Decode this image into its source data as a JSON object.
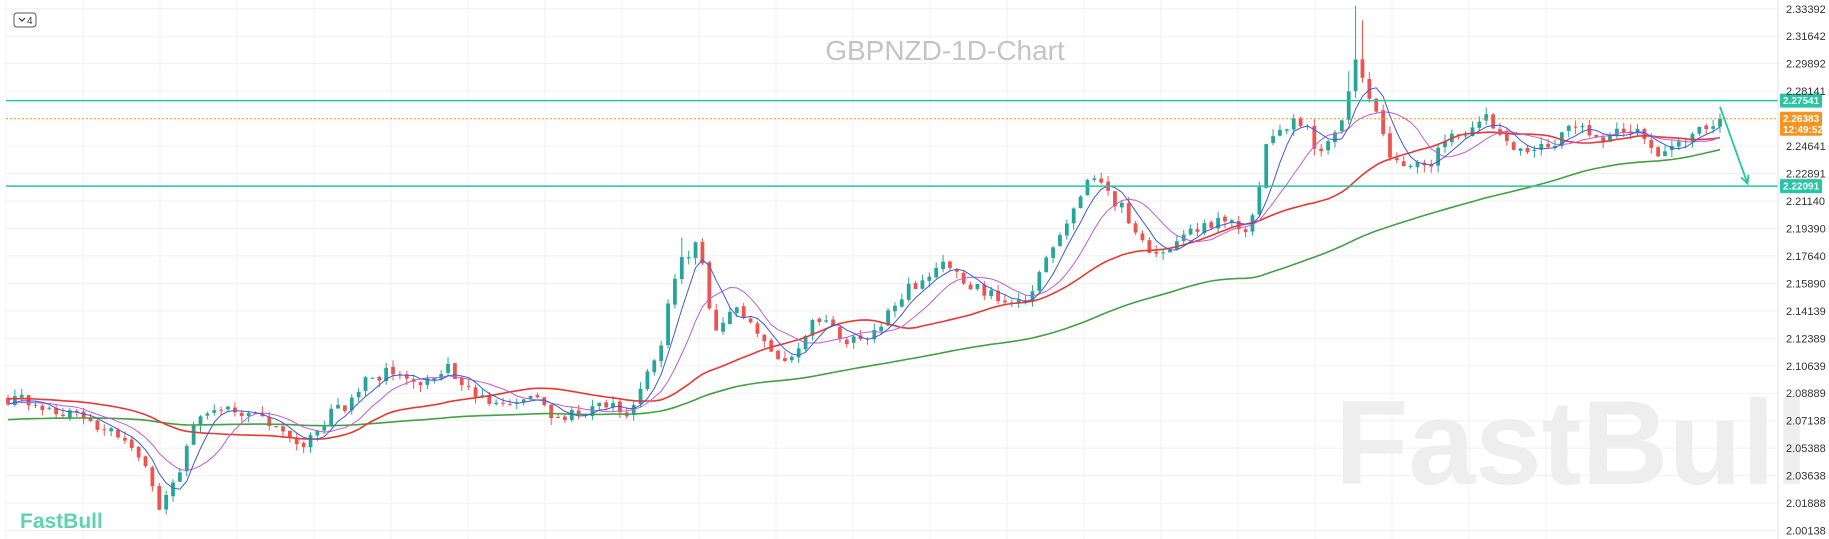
{
  "chart_data": {
    "type": "candlestick",
    "title": "GBPNZD-1D-Chart",
    "symbol": "GBPNZD",
    "timeframe": "1D",
    "interval_badge": "4",
    "brand": "FastBull",
    "watermark": "FastBull",
    "yaxis": {
      "position": "right",
      "range": [
        1.996,
        2.3395
      ],
      "ticks": [
        "2.33392",
        "2.31642",
        "2.29892",
        "2.28141",
        "2.24641",
        "2.22891",
        "2.21140",
        "2.19390",
        "2.17640",
        "2.15890",
        "2.14139",
        "2.12389",
        "2.10639",
        "2.08889",
        "2.07138",
        "2.05388",
        "2.03638",
        "2.01888",
        "2.00138"
      ]
    },
    "grid": true,
    "n_bars": 250,
    "horizontal_levels": [
      {
        "value": 2.27541,
        "label": "2.27541",
        "color": "#26c6a5"
      },
      {
        "value": 2.22091,
        "label": "2.22091",
        "color": "#26c6a5"
      }
    ],
    "current_price": {
      "value": 2.26383,
      "label": "2.26383",
      "countdown": "12:49:52",
      "color": "#f7931e"
    },
    "projection_arrow": {
      "from": [
        249,
        2.2715
      ],
      "to": [
        253,
        2.2225
      ],
      "color": "#26c6a5"
    },
    "colors": {
      "up": "#26a69a",
      "down": "#ef5350",
      "ma_fast": "#3b5bdb",
      "ma_mid": "#c05bd6",
      "ma_slow": "#e53935",
      "ma_long": "#43a047",
      "level": "#26c6a5",
      "price_tag": "#f7931e"
    },
    "anchors": [
      [
        0,
        2.0855
      ],
      [
        8,
        2.078
      ],
      [
        14,
        2.067
      ],
      [
        20,
        2.046
      ],
      [
        22,
        2.018
      ],
      [
        24,
        2.031
      ],
      [
        28,
        2.076
      ],
      [
        32,
        2.081
      ],
      [
        35,
        2.075
      ],
      [
        40,
        2.065
      ],
      [
        42,
        2.053
      ],
      [
        44,
        2.061
      ],
      [
        48,
        2.078
      ],
      [
        52,
        2.096
      ],
      [
        56,
        2.103
      ],
      [
        60,
        2.096
      ],
      [
        64,
        2.104
      ],
      [
        68,
        2.087
      ],
      [
        72,
        2.079
      ],
      [
        76,
        2.085
      ],
      [
        80,
        2.074
      ],
      [
        84,
        2.078
      ],
      [
        88,
        2.081
      ],
      [
        90,
        2.074
      ],
      [
        94,
        2.112
      ],
      [
        98,
        2.174
      ],
      [
        100,
        2.183
      ],
      [
        103,
        2.127
      ],
      [
        106,
        2.141
      ],
      [
        110,
        2.121
      ],
      [
        113,
        2.112
      ],
      [
        118,
        2.134
      ],
      [
        122,
        2.123
      ],
      [
        125,
        2.122
      ],
      [
        128,
        2.139
      ],
      [
        132,
        2.158
      ],
      [
        136,
        2.172
      ],
      [
        140,
        2.156
      ],
      [
        144,
        2.151
      ],
      [
        148,
        2.146
      ],
      [
        152,
        2.181
      ],
      [
        155,
        2.206
      ],
      [
        158,
        2.227
      ],
      [
        161,
        2.211
      ],
      [
        165,
        2.184
      ],
      [
        168,
        2.175
      ],
      [
        172,
        2.194
      ],
      [
        176,
        2.198
      ],
      [
        180,
        2.195
      ],
      [
        184,
        2.253
      ],
      [
        188,
        2.262
      ],
      [
        191,
        2.242
      ],
      [
        194,
        2.263
      ],
      [
        196,
        2.304
      ],
      [
        198,
        2.273
      ],
      [
        202,
        2.237
      ],
      [
        206,
        2.234
      ],
      [
        210,
        2.252
      ],
      [
        215,
        2.263
      ],
      [
        219,
        2.243
      ],
      [
        224,
        2.247
      ],
      [
        228,
        2.261
      ],
      [
        232,
        2.252
      ],
      [
        236,
        2.258
      ],
      [
        240,
        2.243
      ],
      [
        244,
        2.253
      ],
      [
        248,
        2.26
      ],
      [
        250,
        2.2638
      ]
    ],
    "ma_periods": {
      "ma_fast": 5,
      "ma_mid": 10,
      "ma_slow": 30,
      "ma_long": 80
    }
  }
}
